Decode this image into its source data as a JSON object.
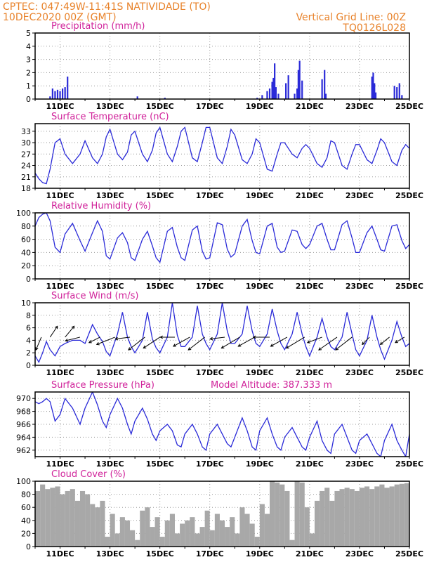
{
  "header": {
    "line1": "CPTEC:   047:49W-11:41S   NATIVIDADE (TO)",
    "line2_left": "10DEC2020 00Z (GMT)",
    "line2_right": "Vertical Grid Line: 00Z",
    "line3_right": "TQ0126L028"
  },
  "colors": {
    "header": "#e8822a",
    "title": "#d0229a",
    "line": "#2a2ad8",
    "bar": "#2a2ad8",
    "cloud": "#a8a8a8"
  },
  "x_ticks": [
    "11DEC",
    "13DEC",
    "15DEC",
    "17DEC",
    "19DEC",
    "21DEC",
    "23DEC",
    "25DEC"
  ],
  "chart_data": [
    {
      "type": "bar",
      "title": "Precipitation  (mm/h)",
      "x_range_days": [
        10,
        25
      ],
      "ylim": [
        0,
        5
      ],
      "yticks": [
        0,
        1,
        2,
        3,
        4,
        5
      ],
      "x": [
        10.6,
        10.7,
        10.8,
        10.9,
        11.0,
        11.1,
        11.2,
        11.3,
        14.1,
        15.2,
        18.9,
        19.1,
        19.3,
        19.4,
        19.5,
        19.55,
        19.6,
        19.65,
        19.75,
        20.05,
        20.15,
        20.4,
        20.5,
        20.55,
        20.6,
        20.7,
        21.5,
        21.6,
        21.65,
        23.5,
        23.55,
        23.6,
        23.65,
        24.4,
        24.5,
        24.6,
        24.7
      ],
      "values": [
        0.2,
        0.8,
        0.6,
        0.7,
        0.6,
        0.8,
        0.9,
        1.7,
        0.2,
        0.1,
        0.1,
        0.3,
        0.6,
        0.8,
        1.3,
        1.6,
        2.7,
        0.9,
        0.4,
        1.2,
        1.8,
        0.4,
        0.8,
        2.2,
        2.9,
        1.4,
        1.5,
        2.2,
        0.4,
        1.7,
        2.0,
        1.2,
        0.5,
        1.0,
        0.9,
        1.2,
        0.3
      ]
    },
    {
      "type": "line",
      "title": "Surface Temperature (nC)",
      "x_range_days": [
        10,
        25
      ],
      "ylim": [
        18,
        35
      ],
      "yticks": [
        18,
        21,
        24,
        27,
        30,
        33
      ],
      "x": [
        10.0,
        10.15,
        10.3,
        10.45,
        10.6,
        10.8,
        11.0,
        11.2,
        11.5,
        11.8,
        12.0,
        12.3,
        12.5,
        12.7,
        12.85,
        13.0,
        13.3,
        13.5,
        13.7,
        13.85,
        14.0,
        14.3,
        14.5,
        14.7,
        14.85,
        15.0,
        15.3,
        15.5,
        15.7,
        15.85,
        16.0,
        16.3,
        16.5,
        16.7,
        16.85,
        17.0,
        17.3,
        17.5,
        17.7,
        17.85,
        18.0,
        18.3,
        18.5,
        18.7,
        18.85,
        19.0,
        19.3,
        19.5,
        19.7,
        19.85,
        20.0,
        20.3,
        20.5,
        20.7,
        20.85,
        21.0,
        21.3,
        21.5,
        21.7,
        21.85,
        22.0,
        22.3,
        22.5,
        22.7,
        22.85,
        23.0,
        23.3,
        23.5,
        23.7,
        23.85,
        24.0,
        24.3,
        24.5,
        24.7,
        24.85,
        25.0
      ],
      "values": [
        22,
        20.5,
        19.5,
        19.2,
        23,
        30,
        31,
        27,
        24.5,
        27,
        30.5,
        26,
        24.5,
        27,
        31.5,
        33.5,
        27,
        25.5,
        27.5,
        32,
        33,
        27,
        25,
        28,
        32.5,
        34,
        27,
        25,
        29,
        33,
        34,
        26,
        25,
        30,
        34,
        34,
        26,
        24.5,
        29,
        33.5,
        32,
        25.5,
        24.5,
        27,
        31,
        30,
        23,
        22.5,
        27,
        30,
        30,
        27,
        26,
        28.5,
        29.5,
        28.5,
        24.5,
        23.5,
        26,
        30.5,
        30,
        24,
        23,
        27,
        29.5,
        29.5,
        25.5,
        24.5,
        28,
        31,
        30,
        25,
        24,
        28,
        29.5,
        28.5
      ]
    },
    {
      "type": "line",
      "title": "Relative Humidity (%)",
      "x_range_days": [
        10,
        25
      ],
      "ylim": [
        0,
        100
      ],
      "yticks": [
        0,
        20,
        40,
        60,
        80,
        100
      ],
      "x": [
        10.0,
        10.15,
        10.3,
        10.45,
        10.6,
        10.8,
        11.0,
        11.2,
        11.5,
        11.8,
        12.0,
        12.3,
        12.5,
        12.7,
        12.85,
        13.0,
        13.3,
        13.5,
        13.7,
        13.85,
        14.0,
        14.3,
        14.5,
        14.7,
        14.85,
        15.0,
        15.3,
        15.5,
        15.7,
        15.85,
        16.0,
        16.3,
        16.5,
        16.7,
        16.85,
        17.0,
        17.3,
        17.5,
        17.7,
        17.85,
        18.0,
        18.3,
        18.5,
        18.7,
        18.85,
        19.0,
        19.3,
        19.5,
        19.7,
        19.85,
        20.0,
        20.3,
        20.5,
        20.7,
        20.85,
        21.0,
        21.3,
        21.5,
        21.7,
        21.85,
        22.0,
        22.3,
        22.5,
        22.7,
        22.85,
        23.0,
        23.3,
        23.5,
        23.7,
        23.85,
        24.0,
        24.3,
        24.5,
        24.7,
        24.85,
        25.0
      ],
      "values": [
        80,
        93,
        98,
        100,
        88,
        48,
        40,
        68,
        84,
        58,
        42,
        70,
        88,
        72,
        35,
        30,
        62,
        70,
        55,
        32,
        28,
        60,
        72,
        50,
        32,
        25,
        72,
        78,
        48,
        32,
        28,
        74,
        80,
        42,
        30,
        32,
        85,
        82,
        45,
        33,
        38,
        80,
        90,
        58,
        40,
        38,
        80,
        84,
        48,
        40,
        42,
        74,
        72,
        52,
        46,
        52,
        80,
        84,
        60,
        44,
        44,
        82,
        88,
        62,
        40,
        40,
        70,
        80,
        60,
        44,
        42,
        80,
        82,
        58,
        46,
        52
      ]
    },
    {
      "type": "line",
      "title": "Surface Wind (m/s)",
      "x_range_days": [
        10,
        25
      ],
      "ylim": [
        0,
        10
      ],
      "yticks": [
        0,
        2,
        4,
        6,
        8,
        10
      ],
      "x": [
        10.0,
        10.15,
        10.3,
        10.45,
        10.6,
        10.8,
        11.0,
        11.2,
        11.5,
        11.8,
        12.0,
        12.3,
        12.5,
        12.7,
        12.85,
        13.0,
        13.3,
        13.5,
        13.7,
        13.85,
        14.0,
        14.3,
        14.5,
        14.7,
        14.85,
        15.0,
        15.3,
        15.5,
        15.7,
        15.85,
        16.0,
        16.3,
        16.5,
        16.7,
        16.85,
        17.0,
        17.3,
        17.5,
        17.7,
        17.85,
        18.0,
        18.3,
        18.5,
        18.7,
        18.85,
        19.0,
        19.3,
        19.5,
        19.7,
        19.85,
        20.0,
        20.3,
        20.5,
        20.7,
        20.85,
        21.0,
        21.3,
        21.5,
        21.7,
        21.85,
        22.0,
        22.3,
        22.5,
        22.7,
        22.85,
        23.0,
        23.3,
        23.5,
        23.7,
        23.85,
        24.0,
        24.3,
        24.5,
        24.7,
        24.85,
        25.0
      ],
      "values": [
        1.5,
        0.5,
        2,
        3.8,
        2.5,
        1.5,
        3,
        3.5,
        4,
        4,
        3.5,
        6.5,
        5,
        3.8,
        2.2,
        1.5,
        5,
        8.5,
        4.5,
        3,
        2,
        4,
        8.5,
        4.2,
        2.8,
        2,
        4.5,
        10,
        4.8,
        3,
        3,
        4.5,
        9.5,
        5,
        3.5,
        2.5,
        5,
        10,
        5.5,
        3.5,
        3.5,
        5,
        9.5,
        5.5,
        3.5,
        3,
        5,
        9,
        5.5,
        3.5,
        2.5,
        5,
        8.5,
        5,
        3,
        1.5,
        4.5,
        7.5,
        4.5,
        3,
        2.5,
        4.5,
        8.5,
        5,
        2.5,
        1.5,
        4,
        8,
        4.5,
        2.5,
        1,
        4,
        7,
        4.5,
        3,
        3.5
      ],
      "wind_vectors": [
        {
          "x": 10.25,
          "u": 1.5,
          "v": 3.5
        },
        {
          "x": 10.6,
          "u": -2,
          "v": -3
        },
        {
          "x": 11.2,
          "u": -2.5,
          "v": -3
        },
        {
          "x": 11.8,
          "u": 4,
          "v": 1
        },
        {
          "x": 12.6,
          "u": 3,
          "v": 1.5
        },
        {
          "x": 13.2,
          "u": 5,
          "v": 2
        },
        {
          "x": 13.8,
          "u": 4,
          "v": 0.5
        },
        {
          "x": 14.4,
          "u": 4.5,
          "v": 3.5
        },
        {
          "x": 15.0,
          "u": 4.5,
          "v": 3
        },
        {
          "x": 15.6,
          "u": 4,
          "v": 0
        },
        {
          "x": 16.2,
          "u": 4.5,
          "v": 2.5
        },
        {
          "x": 16.8,
          "u": 4.5,
          "v": 3.5
        },
        {
          "x": 17.6,
          "u": 4,
          "v": 0.5
        },
        {
          "x": 18.2,
          "u": 5,
          "v": 3
        },
        {
          "x": 18.8,
          "u": 4.5,
          "v": 2.5
        },
        {
          "x": 19.4,
          "u": 4.5,
          "v": 0
        },
        {
          "x": 20.1,
          "u": 4.5,
          "v": 2.5
        },
        {
          "x": 20.8,
          "u": 5,
          "v": 3
        },
        {
          "x": 21.5,
          "u": 4,
          "v": 1.5
        },
        {
          "x": 22.1,
          "u": 5,
          "v": 3.5
        },
        {
          "x": 22.7,
          "u": 4.5,
          "v": 3.5
        },
        {
          "x": 23.4,
          "u": 2,
          "v": 2
        },
        {
          "x": 24.2,
          "u": 2.5,
          "v": 2
        },
        {
          "x": 24.8,
          "u": 2.5,
          "v": 1.5
        }
      ]
    },
    {
      "type": "line",
      "title": "Surface Pressure (hPa)",
      "annotation": "Model Altitude: 387.333 m",
      "x_range_days": [
        10,
        25
      ],
      "ylim": [
        961,
        971
      ],
      "yticks": [
        962,
        964,
        966,
        968,
        970
      ],
      "x": [
        10.0,
        10.15,
        10.3,
        10.45,
        10.6,
        10.8,
        11.0,
        11.2,
        11.5,
        11.8,
        12.0,
        12.3,
        12.5,
        12.7,
        12.85,
        13.0,
        13.3,
        13.5,
        13.7,
        13.85,
        14.0,
        14.3,
        14.5,
        14.7,
        14.85,
        15.0,
        15.3,
        15.5,
        15.7,
        15.85,
        16.0,
        16.3,
        16.5,
        16.7,
        16.85,
        17.0,
        17.3,
        17.5,
        17.7,
        17.85,
        18.0,
        18.3,
        18.5,
        18.7,
        18.85,
        19.0,
        19.3,
        19.5,
        19.7,
        19.85,
        20.0,
        20.3,
        20.5,
        20.7,
        20.85,
        21.0,
        21.3,
        21.5,
        21.7,
        21.85,
        22.0,
        22.3,
        22.5,
        22.7,
        22.85,
        23.0,
        23.3,
        23.5,
        23.7,
        23.85,
        24.0,
        24.3,
        24.5,
        24.7,
        24.85,
        25.0
      ],
      "values": [
        969.5,
        969.2,
        969.5,
        970,
        969.5,
        966.5,
        967.5,
        970,
        968.5,
        966,
        968.5,
        971,
        969,
        966.5,
        965.5,
        967.5,
        970,
        968.5,
        966,
        964.5,
        966.5,
        968.5,
        966.8,
        964.5,
        963.5,
        965,
        966,
        965,
        962.8,
        962.5,
        964.5,
        966,
        964.5,
        962.5,
        962,
        964.5,
        966,
        964.5,
        963,
        962.5,
        964,
        967,
        965,
        962.5,
        962,
        965,
        967,
        964.5,
        962.5,
        962,
        964,
        965.5,
        964,
        962.5,
        962,
        964,
        966.5,
        963.5,
        962,
        961.5,
        964.5,
        966,
        964,
        962,
        961.5,
        963.5,
        964.5,
        963,
        961.5,
        961,
        963.5,
        966,
        963.5,
        962,
        961,
        964.5
      ]
    },
    {
      "type": "area",
      "title": "Cloud Cover (%)",
      "x_range_days": [
        10,
        25
      ],
      "ylim": [
        0,
        100
      ],
      "yticks": [
        0,
        20,
        40,
        60,
        80,
        100
      ],
      "x": [
        10.0,
        10.2,
        10.4,
        10.6,
        10.8,
        11.0,
        11.2,
        11.4,
        11.6,
        11.8,
        12.0,
        12.2,
        12.4,
        12.6,
        12.8,
        13.0,
        13.2,
        13.4,
        13.6,
        13.8,
        14.0,
        14.2,
        14.4,
        14.6,
        14.8,
        15.0,
        15.2,
        15.4,
        15.6,
        15.8,
        16.0,
        16.2,
        16.4,
        16.6,
        16.8,
        17.0,
        17.2,
        17.4,
        17.6,
        17.8,
        18.0,
        18.2,
        18.4,
        18.6,
        18.8,
        19.0,
        19.2,
        19.4,
        19.6,
        19.8,
        20.0,
        20.2,
        20.4,
        20.6,
        20.8,
        21.0,
        21.2,
        21.4,
        21.6,
        21.8,
        22.0,
        22.2,
        22.4,
        22.6,
        22.8,
        23.0,
        23.2,
        23.4,
        23.6,
        23.8,
        24.0,
        24.2,
        24.4,
        24.6,
        24.8,
        25.0
      ],
      "values": [
        85,
        95,
        88,
        90,
        92,
        80,
        85,
        88,
        70,
        85,
        80,
        65,
        60,
        70,
        15,
        50,
        20,
        45,
        40,
        25,
        10,
        55,
        60,
        30,
        45,
        15,
        40,
        50,
        20,
        35,
        40,
        45,
        20,
        30,
        55,
        25,
        50,
        40,
        30,
        45,
        20,
        60,
        50,
        35,
        15,
        65,
        50,
        100,
        98,
        95,
        85,
        10,
        100,
        98,
        60,
        20,
        70,
        85,
        90,
        70,
        85,
        88,
        90,
        88,
        85,
        90,
        92,
        88,
        92,
        95,
        90,
        92,
        95,
        96,
        97,
        94
      ]
    }
  ]
}
